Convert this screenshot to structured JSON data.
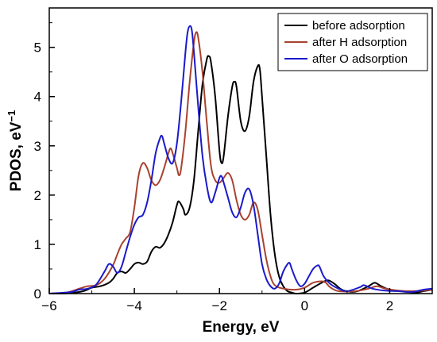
{
  "chart_data": {
    "type": "line",
    "xlabel": "Energy, eV",
    "ylabel": "PDOS, eV",
    "ylabel_superscript": "−1",
    "xlim": [
      -6,
      3
    ],
    "ylim": [
      0,
      5.8
    ],
    "xticks": [
      -6,
      -4,
      -2,
      0,
      2
    ],
    "yticks": [
      0,
      1,
      2,
      3,
      4,
      5
    ],
    "grid": false,
    "legend_position": "top-right",
    "series": [
      {
        "name": "before adsorption",
        "color": "#000000",
        "points": [
          [
            -6,
            0
          ],
          [
            -5.5,
            0.01
          ],
          [
            -5.2,
            0.05
          ],
          [
            -5.0,
            0.12
          ],
          [
            -4.8,
            0.15
          ],
          [
            -4.6,
            0.22
          ],
          [
            -4.5,
            0.3
          ],
          [
            -4.4,
            0.42
          ],
          [
            -4.3,
            0.45
          ],
          [
            -4.2,
            0.42
          ],
          [
            -4.1,
            0.5
          ],
          [
            -4.0,
            0.6
          ],
          [
            -3.9,
            0.63
          ],
          [
            -3.8,
            0.6
          ],
          [
            -3.7,
            0.65
          ],
          [
            -3.6,
            0.85
          ],
          [
            -3.5,
            0.95
          ],
          [
            -3.4,
            0.93
          ],
          [
            -3.3,
            1.02
          ],
          [
            -3.2,
            1.2
          ],
          [
            -3.1,
            1.45
          ],
          [
            -3.0,
            1.8
          ],
          [
            -2.95,
            1.87
          ],
          [
            -2.85,
            1.72
          ],
          [
            -2.8,
            1.6
          ],
          [
            -2.7,
            1.75
          ],
          [
            -2.6,
            2.3
          ],
          [
            -2.5,
            3.3
          ],
          [
            -2.4,
            4.25
          ],
          [
            -2.3,
            4.75
          ],
          [
            -2.25,
            4.82
          ],
          [
            -2.2,
            4.7
          ],
          [
            -2.1,
            4.0
          ],
          [
            -2.0,
            2.9
          ],
          [
            -1.95,
            2.65
          ],
          [
            -1.9,
            2.8
          ],
          [
            -1.8,
            3.6
          ],
          [
            -1.7,
            4.2
          ],
          [
            -1.65,
            4.3
          ],
          [
            -1.6,
            4.2
          ],
          [
            -1.5,
            3.5
          ],
          [
            -1.4,
            3.3
          ],
          [
            -1.3,
            3.6
          ],
          [
            -1.2,
            4.3
          ],
          [
            -1.1,
            4.62
          ],
          [
            -1.05,
            4.55
          ],
          [
            -1.0,
            4.0
          ],
          [
            -0.9,
            2.8
          ],
          [
            -0.8,
            1.6
          ],
          [
            -0.7,
            0.8
          ],
          [
            -0.6,
            0.35
          ],
          [
            -0.5,
            0.15
          ],
          [
            -0.4,
            0.05
          ],
          [
            -0.3,
            0.02
          ],
          [
            -0.2,
            0.0
          ],
          [
            0,
            0.02
          ],
          [
            0.2,
            0.12
          ],
          [
            0.4,
            0.22
          ],
          [
            0.55,
            0.27
          ],
          [
            0.7,
            0.2
          ],
          [
            0.9,
            0.07
          ],
          [
            1.2,
            0.04
          ],
          [
            1.5,
            0.15
          ],
          [
            1.65,
            0.22
          ],
          [
            1.8,
            0.15
          ],
          [
            2.0,
            0.08
          ],
          [
            2.3,
            0.05
          ],
          [
            2.6,
            0.02
          ],
          [
            2.8,
            0.05
          ],
          [
            3,
            0.08
          ]
        ]
      },
      {
        "name": "after H adsorption",
        "color": "#a8422f",
        "points": [
          [
            -6,
            0
          ],
          [
            -5.6,
            0.02
          ],
          [
            -5.3,
            0.1
          ],
          [
            -5.1,
            0.15
          ],
          [
            -4.9,
            0.17
          ],
          [
            -4.7,
            0.3
          ],
          [
            -4.5,
            0.58
          ],
          [
            -4.4,
            0.8
          ],
          [
            -4.3,
            1.0
          ],
          [
            -4.2,
            1.12
          ],
          [
            -4.1,
            1.25
          ],
          [
            -4.0,
            1.75
          ],
          [
            -3.9,
            2.4
          ],
          [
            -3.8,
            2.65
          ],
          [
            -3.7,
            2.55
          ],
          [
            -3.6,
            2.3
          ],
          [
            -3.5,
            2.2
          ],
          [
            -3.4,
            2.3
          ],
          [
            -3.3,
            2.55
          ],
          [
            -3.2,
            2.85
          ],
          [
            -3.15,
            2.95
          ],
          [
            -3.1,
            2.85
          ],
          [
            -3.0,
            2.55
          ],
          [
            -2.95,
            2.4
          ],
          [
            -2.9,
            2.55
          ],
          [
            -2.8,
            3.3
          ],
          [
            -2.7,
            4.3
          ],
          [
            -2.6,
            5.1
          ],
          [
            -2.55,
            5.3
          ],
          [
            -2.5,
            5.2
          ],
          [
            -2.4,
            4.5
          ],
          [
            -2.3,
            3.5
          ],
          [
            -2.2,
            2.6
          ],
          [
            -2.1,
            2.3
          ],
          [
            -2.0,
            2.25
          ],
          [
            -1.9,
            2.35
          ],
          [
            -1.8,
            2.45
          ],
          [
            -1.7,
            2.3
          ],
          [
            -1.6,
            1.9
          ],
          [
            -1.5,
            1.6
          ],
          [
            -1.4,
            1.5
          ],
          [
            -1.3,
            1.6
          ],
          [
            -1.2,
            1.85
          ],
          [
            -1.1,
            1.7
          ],
          [
            -1.0,
            1.2
          ],
          [
            -0.9,
            0.7
          ],
          [
            -0.8,
            0.35
          ],
          [
            -0.7,
            0.17
          ],
          [
            -0.5,
            0.1
          ],
          [
            -0.2,
            0.08
          ],
          [
            0,
            0.12
          ],
          [
            0.2,
            0.22
          ],
          [
            0.4,
            0.25
          ],
          [
            0.5,
            0.22
          ],
          [
            0.6,
            0.13
          ],
          [
            0.8,
            0.05
          ],
          [
            1.2,
            0.05
          ],
          [
            1.5,
            0.1
          ],
          [
            1.7,
            0.15
          ],
          [
            1.9,
            0.1
          ],
          [
            2.2,
            0.06
          ],
          [
            2.5,
            0.05
          ],
          [
            2.8,
            0.06
          ],
          [
            3,
            0.08
          ]
        ]
      },
      {
        "name": "after O adsorption",
        "color": "#1a1acc",
        "points": [
          [
            -6,
            0
          ],
          [
            -5.5,
            0.03
          ],
          [
            -5.3,
            0.08
          ],
          [
            -5.1,
            0.1
          ],
          [
            -4.9,
            0.18
          ],
          [
            -4.7,
            0.45
          ],
          [
            -4.6,
            0.6
          ],
          [
            -4.5,
            0.55
          ],
          [
            -4.4,
            0.42
          ],
          [
            -4.3,
            0.55
          ],
          [
            -4.2,
            0.85
          ],
          [
            -4.1,
            1.15
          ],
          [
            -4.0,
            1.4
          ],
          [
            -3.9,
            1.55
          ],
          [
            -3.8,
            1.6
          ],
          [
            -3.7,
            1.85
          ],
          [
            -3.6,
            2.3
          ],
          [
            -3.5,
            2.85
          ],
          [
            -3.4,
            3.15
          ],
          [
            -3.35,
            3.2
          ],
          [
            -3.3,
            3.05
          ],
          [
            -3.2,
            2.75
          ],
          [
            -3.1,
            2.65
          ],
          [
            -3.0,
            3.05
          ],
          [
            -2.9,
            3.9
          ],
          [
            -2.8,
            4.9
          ],
          [
            -2.75,
            5.3
          ],
          [
            -2.7,
            5.43
          ],
          [
            -2.65,
            5.35
          ],
          [
            -2.6,
            4.9
          ],
          [
            -2.5,
            3.8
          ],
          [
            -2.4,
            2.8
          ],
          [
            -2.3,
            2.2
          ],
          [
            -2.2,
            1.85
          ],
          [
            -2.1,
            2.05
          ],
          [
            -2.0,
            2.35
          ],
          [
            -1.95,
            2.38
          ],
          [
            -1.9,
            2.25
          ],
          [
            -1.8,
            1.95
          ],
          [
            -1.7,
            1.65
          ],
          [
            -1.6,
            1.55
          ],
          [
            -1.5,
            1.75
          ],
          [
            -1.4,
            2.05
          ],
          [
            -1.3,
            2.12
          ],
          [
            -1.2,
            1.8
          ],
          [
            -1.1,
            1.2
          ],
          [
            -1.0,
            0.6
          ],
          [
            -0.9,
            0.3
          ],
          [
            -0.8,
            0.15
          ],
          [
            -0.7,
            0.1
          ],
          [
            -0.6,
            0.2
          ],
          [
            -0.5,
            0.45
          ],
          [
            -0.4,
            0.6
          ],
          [
            -0.35,
            0.62
          ],
          [
            -0.3,
            0.5
          ],
          [
            -0.2,
            0.28
          ],
          [
            -0.1,
            0.15
          ],
          [
            0,
            0.2
          ],
          [
            0.1,
            0.35
          ],
          [
            0.2,
            0.5
          ],
          [
            0.3,
            0.57
          ],
          [
            0.35,
            0.55
          ],
          [
            0.45,
            0.35
          ],
          [
            0.6,
            0.2
          ],
          [
            0.8,
            0.1
          ],
          [
            1.0,
            0.05
          ],
          [
            1.3,
            0.13
          ],
          [
            1.4,
            0.17
          ],
          [
            1.6,
            0.1
          ],
          [
            1.9,
            0.06
          ],
          [
            2.2,
            0.05
          ],
          [
            2.5,
            0.03
          ],
          [
            2.8,
            0.08
          ],
          [
            3,
            0.1
          ]
        ]
      }
    ]
  }
}
